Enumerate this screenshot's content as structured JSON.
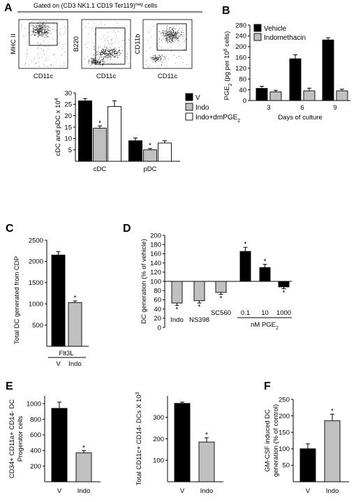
{
  "colors": {
    "black": "#000000",
    "gray": "#c0c0c0",
    "white": "#ffffff"
  },
  "panels": {
    "A": {
      "letter": "A",
      "gating_title": "Gated on (CD3 NK1.1 CD19 Ter119)",
      "gating_superscript": "neg",
      "gating_suffix": " cells",
      "flow_plots": [
        {
          "ylabel": "MHC II",
          "xlabel": "CD11c"
        },
        {
          "ylabel": "B220",
          "xlabel": "CD11c"
        },
        {
          "ylabel": "CD11b",
          "xlabel": "CD11c"
        }
      ]
    },
    "B": {
      "letter": "B"
    },
    "C": {
      "letter": "C"
    },
    "D": {
      "letter": "D"
    },
    "E": {
      "letter": "E"
    },
    "F": {
      "letter": "F"
    }
  },
  "chart_data": [
    {
      "id": "A_bar",
      "type": "bar",
      "ylabel": "cDC and pDC x 10",
      "ylabel_sup": "4",
      "ylim": [
        0,
        30
      ],
      "yticks": [
        5,
        10,
        15,
        20,
        25,
        30
      ],
      "categories": [
        "cDC",
        "pDC"
      ],
      "series": [
        {
          "name": "V",
          "color": "#000000",
          "values": [
            26.5,
            9.0
          ],
          "errors": [
            1.0,
            1.2
          ],
          "sig": [
            false,
            false
          ]
        },
        {
          "name": "Indo",
          "color": "#c0c0c0",
          "values": [
            14.5,
            5.0
          ],
          "errors": [
            1.0,
            0.6
          ],
          "sig": [
            true,
            true
          ]
        },
        {
          "name": "Indo+dmPGE",
          "name_sub": "2",
          "color": "#ffffff",
          "values": [
            24.0,
            8.0
          ],
          "errors": [
            2.5,
            1.0
          ],
          "sig": [
            false,
            false
          ]
        }
      ],
      "legend": "right"
    },
    {
      "id": "B_bar",
      "type": "bar",
      "ylabel": "PGE",
      "ylabel_sub": "2",
      "ylabel_rest": " (pg per 10",
      "ylabel_sup": "6",
      "ylabel_end": " cells)",
      "xlabel": "Days of culture",
      "ylim": [
        0,
        280
      ],
      "yticks": [
        0,
        40,
        80,
        120,
        160,
        200,
        240,
        280
      ],
      "categories": [
        "3",
        "6",
        "9"
      ],
      "series": [
        {
          "name": "Vehicle",
          "color": "#000000",
          "values": [
            45,
            155,
            225
          ],
          "errors": [
            8,
            15,
            8
          ],
          "sig": [
            false,
            false,
            false
          ]
        },
        {
          "name": "Indomethacin",
          "color": "#c0c0c0",
          "values": [
            32,
            36,
            36
          ],
          "errors": [
            6,
            10,
            6
          ],
          "sig": [
            false,
            false,
            false
          ]
        }
      ],
      "legend": "top-left"
    },
    {
      "id": "C_bar",
      "type": "bar",
      "ylabel": "Total DC generated from CDP",
      "ylim": [
        0,
        2500
      ],
      "yticks": [
        500,
        1000,
        1500,
        2000,
        2500
      ],
      "group_label": "Flt3L",
      "categories": [
        "V",
        "Indo"
      ],
      "values": [
        2150,
        1030
      ],
      "errors": [
        80,
        40
      ],
      "colors": [
        "#000000",
        "#c0c0c0"
      ],
      "sig": [
        false,
        true
      ]
    },
    {
      "id": "D_bar",
      "type": "bar",
      "ylabel": "DC generation (% of vehicle)",
      "ylim": [
        0,
        200
      ],
      "baseline": 100,
      "yticks": [
        0,
        20,
        40,
        60,
        80,
        100,
        120,
        140,
        160,
        180,
        200
      ],
      "categories": [
        "Indo",
        "NS398",
        "SC560",
        "0.1",
        "10",
        "1000"
      ],
      "group_label": "nM PGE",
      "group_label_sub": "2",
      "values": [
        53,
        58,
        76,
        165,
        130,
        88
      ],
      "errors": [
        5,
        5,
        4,
        9,
        7,
        4
      ],
      "colors": [
        "#c0c0c0",
        "#c0c0c0",
        "#c0c0c0",
        "#000000",
        "#000000",
        "#000000"
      ],
      "sig": [
        true,
        true,
        true,
        true,
        true,
        true
      ]
    },
    {
      "id": "E1_bar",
      "type": "bar",
      "ylabel_lines": [
        "CD34+ CD11a+ CD14- DC",
        "Progenitor cells"
      ],
      "ylim": [
        0,
        1100
      ],
      "yticks": [
        200,
        400,
        600,
        800,
        1000
      ],
      "categories": [
        "V",
        "Indo"
      ],
      "values": [
        940,
        370
      ],
      "errors": [
        80,
        30
      ],
      "colors": [
        "#000000",
        "#c0c0c0"
      ],
      "sig": [
        false,
        true
      ]
    },
    {
      "id": "E2_bar",
      "type": "bar",
      "ylabel": "Total CD11c+ CD14- DCs X 10",
      "ylabel_sup": "3",
      "ylim": [
        0,
        400
      ],
      "yticks": [
        100,
        200,
        300
      ],
      "categories": [
        "V",
        "Indo"
      ],
      "values": [
        365,
        185
      ],
      "errors": [
        6,
        20
      ],
      "colors": [
        "#000000",
        "#c0c0c0"
      ],
      "sig": [
        false,
        true
      ]
    },
    {
      "id": "F_bar",
      "type": "bar",
      "ylabel_lines": [
        "GM-CSF induced DC",
        "generation  (% of control)"
      ],
      "ylim": [
        0,
        250
      ],
      "yticks": [
        50,
        100,
        150,
        200,
        250
      ],
      "categories": [
        "V",
        "Indo"
      ],
      "values": [
        100,
        185
      ],
      "errors": [
        15,
        20
      ],
      "colors": [
        "#000000",
        "#c0c0c0"
      ],
      "sig": [
        false,
        true
      ]
    }
  ]
}
